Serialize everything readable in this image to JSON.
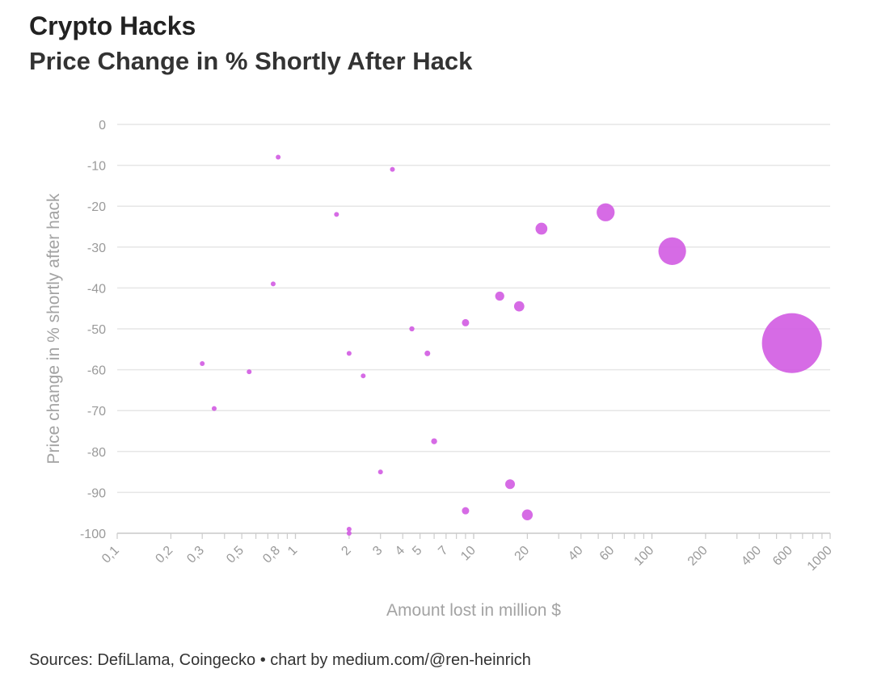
{
  "header": {
    "title": "Crypto Hacks",
    "subtitle": "Price Change in % Shortly After Hack"
  },
  "footer": {
    "source": "Sources: DefiLlama, Coingecko • chart by medium.com/@ren-heinrich"
  },
  "colors": {
    "bubble": "#d35ee3",
    "grid": "#e6e6e6",
    "axis": "#cccccc",
    "tick_text": "#9a9a9a"
  },
  "chart_data": {
    "type": "scatter",
    "title": "Crypto Hacks",
    "subtitle": "Price Change in % Shortly After Hack",
    "xlabel": "Amount lost in million $",
    "ylabel": "Price change in % shortly after hack",
    "xscale": "log",
    "xlim": [
      0.1,
      1000
    ],
    "ylim": [
      -100,
      0
    ],
    "grid": "horizontal",
    "x_tick_labels": [
      {
        "value": 0.1,
        "label": "0,1"
      },
      {
        "value": 0.2,
        "label": "0,2"
      },
      {
        "value": 0.3,
        "label": "0,3"
      },
      {
        "value": 0.5,
        "label": "0,5"
      },
      {
        "value": 0.8,
        "label": "0,8"
      },
      {
        "value": 1,
        "label": "1"
      },
      {
        "value": 2,
        "label": "2"
      },
      {
        "value": 3,
        "label": "3"
      },
      {
        "value": 4,
        "label": "4"
      },
      {
        "value": 5,
        "label": "5"
      },
      {
        "value": 7,
        "label": "7"
      },
      {
        "value": 10,
        "label": "10"
      },
      {
        "value": 20,
        "label": "20"
      },
      {
        "value": 40,
        "label": "40"
      },
      {
        "value": 60,
        "label": "60"
      },
      {
        "value": 100,
        "label": "100"
      },
      {
        "value": 200,
        "label": "200"
      },
      {
        "value": 400,
        "label": "400"
      },
      {
        "value": 600,
        "label": "600"
      },
      {
        "value": 1000,
        "label": "1000"
      }
    ],
    "y_ticks": [
      {
        "value": 0,
        "label": "0"
      },
      {
        "value": -10,
        "label": "-10"
      },
      {
        "value": -20,
        "label": "-20"
      },
      {
        "value": -30,
        "label": "-30"
      },
      {
        "value": -40,
        "label": "-40"
      },
      {
        "value": -50,
        "label": "-50"
      },
      {
        "value": -60,
        "label": "-60"
      },
      {
        "value": -70,
        "label": "-70"
      },
      {
        "value": -80,
        "label": "-80"
      },
      {
        "value": -90,
        "label": "-90"
      },
      {
        "value": -100,
        "label": "-100"
      }
    ],
    "points": [
      {
        "x": 0.8,
        "y": -8
      },
      {
        "x": 3.5,
        "y": -11
      },
      {
        "x": 1.7,
        "y": -22
      },
      {
        "x": 0.75,
        "y": -39
      },
      {
        "x": 0.3,
        "y": -58.5
      },
      {
        "x": 0.55,
        "y": -60.5
      },
      {
        "x": 0.35,
        "y": -69.5
      },
      {
        "x": 2,
        "y": -56
      },
      {
        "x": 2.4,
        "y": -61.5
      },
      {
        "x": 4.5,
        "y": -50
      },
      {
        "x": 5.5,
        "y": -56
      },
      {
        "x": 6,
        "y": -77.5
      },
      {
        "x": 3,
        "y": -85
      },
      {
        "x": 2,
        "y": -99
      },
      {
        "x": 2,
        "y": -100
      },
      {
        "x": 9,
        "y": -48.5
      },
      {
        "x": 14,
        "y": -42
      },
      {
        "x": 18,
        "y": -44.5
      },
      {
        "x": 24,
        "y": -25.5
      },
      {
        "x": 9,
        "y": -94.5
      },
      {
        "x": 16,
        "y": -88
      },
      {
        "x": 20,
        "y": -95.5
      },
      {
        "x": 55,
        "y": -21.5
      },
      {
        "x": 130,
        "y": -31
      },
      {
        "x": 610,
        "y": -53.5
      }
    ]
  }
}
